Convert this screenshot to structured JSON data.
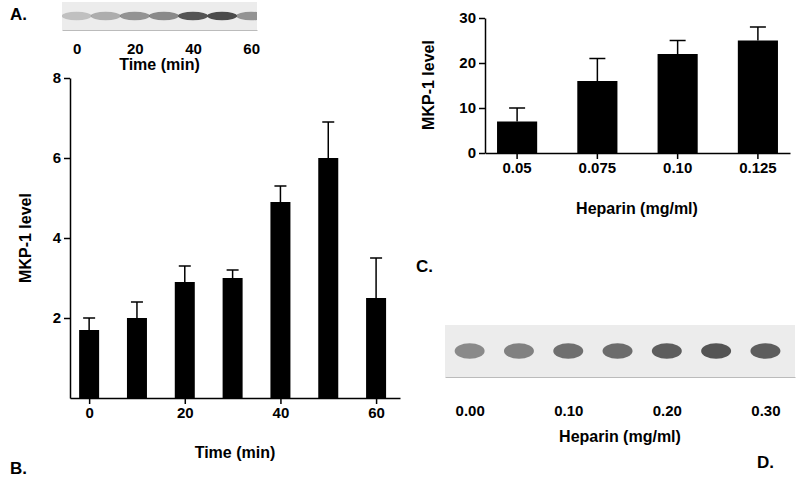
{
  "chart_data": [
    {
      "type": "blot",
      "title": "A.",
      "x": [
        0,
        10,
        20,
        30,
        40,
        50,
        60
      ],
      "xlim": [
        -5,
        62
      ],
      "xticks": [
        0,
        20,
        40,
        60
      ],
      "xlabel": "Time (min)",
      "color": "#3a3a3a"
    },
    {
      "type": "bar",
      "title": "B.",
      "x": [
        0,
        10,
        20,
        30,
        40,
        50,
        60
      ],
      "values": [
        1.7,
        2.0,
        2.9,
        3.0,
        4.9,
        6.0,
        2.5
      ],
      "errors": [
        0.3,
        0.4,
        0.4,
        0.2,
        0.4,
        0.9,
        1.0
      ],
      "xlim": [
        -4,
        65
      ],
      "xticks": [
        0,
        20,
        40,
        60
      ],
      "ylim": [
        0,
        8
      ],
      "yticks": [
        2,
        4,
        6,
        8
      ],
      "xlabel": "Time (min)",
      "ylabel": "MKP-1 level",
      "color": "#000000"
    },
    {
      "type": "bar",
      "title": "C.",
      "categories": [
        "0.05",
        "0.075",
        "0.10",
        "0.125"
      ],
      "values": [
        7,
        16,
        22,
        25
      ],
      "errors": [
        3,
        5,
        3,
        3
      ],
      "ylim": [
        0,
        30
      ],
      "yticks": [
        0,
        10,
        20,
        30
      ],
      "xlabel": "Heparin (mg/ml)",
      "ylabel": "MKP-1 level",
      "color": "#000000"
    },
    {
      "type": "blot",
      "title": "D.",
      "x": [
        0,
        0.05,
        0.1,
        0.15,
        0.2,
        0.25,
        0.3
      ],
      "xlim": [
        -0.025,
        0.33
      ],
      "xticks": [
        {
          "value": 0,
          "label": "0.00"
        },
        {
          "value": 0.1,
          "label": "0.10"
        },
        {
          "value": 0.2,
          "label": "0.20"
        },
        {
          "value": 0.3,
          "label": "0.30"
        }
      ],
      "xlabel": "Heparin (mg/ml)",
      "color": "#3a3a3a"
    }
  ]
}
